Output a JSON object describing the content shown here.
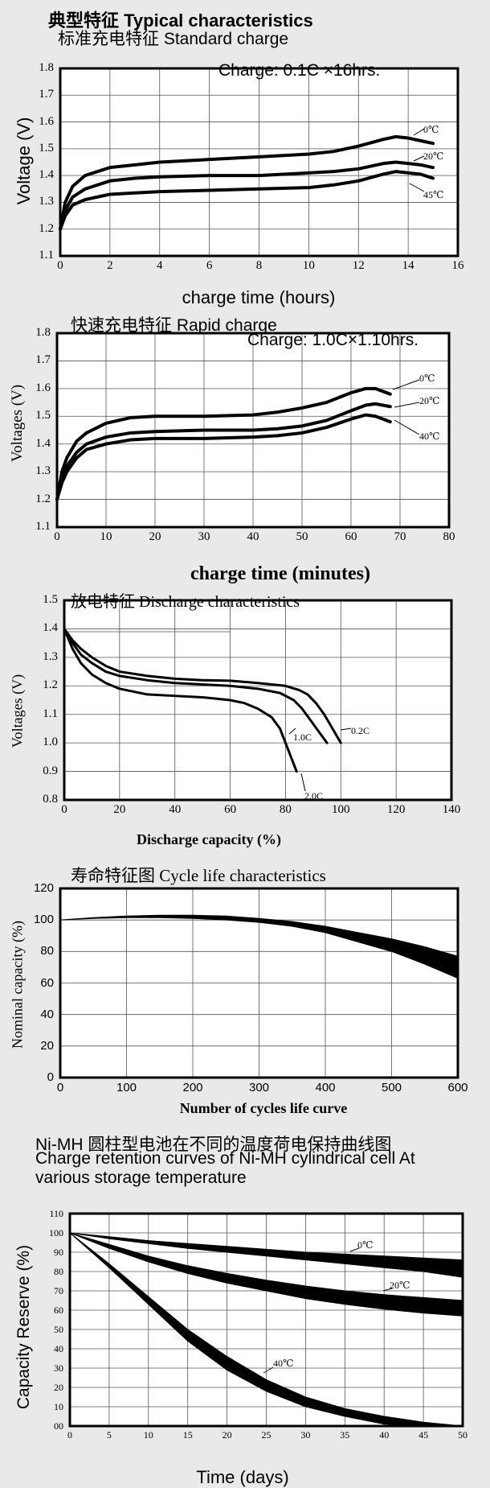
{
  "page_title": "典型特征 Typical characteristics",
  "colors": {
    "panel_bg": "#e9e9e9",
    "white": "#ffffff",
    "ink": "#000000",
    "grid": "#555555"
  },
  "chart_data": [
    {
      "id": "standard",
      "type": "line",
      "title": "标准充电特征 Standard charge",
      "annotation": "Charge: 0.1C ×16hrs.",
      "xlabel": "charge time (hours)",
      "ylabel": "Voltage (V)",
      "xlim": [
        0,
        16
      ],
      "ylim": [
        1.1,
        1.8
      ],
      "xticks": [
        "0",
        "2",
        "4",
        "6",
        "8",
        "10",
        "12",
        "14",
        "16"
      ],
      "yticks": [
        "1.1",
        "1.2",
        "1.3",
        "1.4",
        "1.5",
        "1.6",
        "1.7",
        "1.8"
      ],
      "grid": true,
      "series": [
        {
          "name": "0℃",
          "x": [
            0,
            0.2,
            0.5,
            1,
            2,
            3,
            4,
            6,
            8,
            10,
            11,
            12,
            13,
            13.5,
            14,
            14.5,
            15
          ],
          "y": [
            1.2,
            1.3,
            1.36,
            1.4,
            1.43,
            1.44,
            1.45,
            1.46,
            1.47,
            1.48,
            1.49,
            1.51,
            1.535,
            1.545,
            1.54,
            1.53,
            1.52
          ],
          "band": 0.005
        },
        {
          "name": "20℃",
          "x": [
            0,
            0.2,
            0.5,
            1,
            2,
            3,
            4,
            6,
            8,
            10,
            11,
            12,
            13,
            13.5,
            14,
            14.5,
            15
          ],
          "y": [
            1.2,
            1.27,
            1.32,
            1.35,
            1.38,
            1.39,
            1.395,
            1.4,
            1.4,
            1.41,
            1.415,
            1.425,
            1.445,
            1.45,
            1.445,
            1.44,
            1.43
          ],
          "band": 0.004
        },
        {
          "name": "45℃",
          "x": [
            0,
            0.2,
            0.5,
            1,
            2,
            3,
            4,
            6,
            8,
            10,
            11,
            12,
            13,
            13.5,
            14,
            14.5,
            15
          ],
          "y": [
            1.2,
            1.25,
            1.29,
            1.31,
            1.33,
            1.335,
            1.34,
            1.345,
            1.35,
            1.355,
            1.365,
            1.38,
            1.405,
            1.415,
            1.41,
            1.405,
            1.39
          ],
          "band": 0.004
        }
      ]
    },
    {
      "id": "rapid",
      "type": "line",
      "title": "快速充电特征 Rapid charge",
      "annotation": "Charge: 1.0C×1.10hrs.",
      "xlabel": "charge time (minutes)",
      "ylabel": "Voltages (V)",
      "xlim": [
        0,
        80
      ],
      "ylim": [
        1.1,
        1.8
      ],
      "xticks": [
        "0",
        "10",
        "20",
        "30",
        "40",
        "50",
        "60",
        "70",
        "80"
      ],
      "yticks": [
        "1.1",
        "1.2",
        "1.3",
        "1.4",
        "1.5",
        "1.6",
        "1.7",
        "1.8"
      ],
      "grid": true,
      "series": [
        {
          "name": "0℃",
          "x": [
            0,
            1,
            2,
            4,
            6,
            10,
            15,
            20,
            30,
            40,
            45,
            50,
            55,
            60,
            63,
            65,
            68
          ],
          "y": [
            1.2,
            1.3,
            1.35,
            1.41,
            1.44,
            1.475,
            1.495,
            1.5,
            1.5,
            1.505,
            1.515,
            1.53,
            1.55,
            1.585,
            1.6,
            1.6,
            1.58
          ],
          "band": 0.006
        },
        {
          "name": "20℃",
          "x": [
            0,
            1,
            2,
            4,
            6,
            10,
            15,
            20,
            30,
            40,
            45,
            50,
            55,
            60,
            63,
            65,
            68
          ],
          "y": [
            1.2,
            1.28,
            1.32,
            1.37,
            1.4,
            1.425,
            1.44,
            1.445,
            1.45,
            1.45,
            1.455,
            1.465,
            1.485,
            1.52,
            1.54,
            1.545,
            1.535
          ],
          "band": 0.006
        },
        {
          "name": "40℃",
          "x": [
            0,
            1,
            2,
            4,
            6,
            10,
            15,
            20,
            30,
            40,
            45,
            50,
            55,
            60,
            63,
            65,
            68
          ],
          "y": [
            1.2,
            1.26,
            1.3,
            1.35,
            1.38,
            1.4,
            1.415,
            1.42,
            1.42,
            1.425,
            1.43,
            1.44,
            1.46,
            1.49,
            1.505,
            1.5,
            1.48
          ],
          "band": 0.006
        }
      ]
    },
    {
      "id": "discharge",
      "type": "line",
      "title": "放电特征 Discharge characteristics",
      "xlabel": "Discharge capacity (%)",
      "ylabel": "Voltages (V)",
      "xlim": [
        0,
        140
      ],
      "ylim": [
        0.8,
        1.5
      ],
      "xticks": [
        "0",
        "20",
        "40",
        "60",
        "80",
        "100",
        "120",
        "140"
      ],
      "yticks": [
        "0.8",
        "0.9",
        "1.0",
        "1.1",
        "1.2",
        "1.3",
        "1.4",
        "1.5"
      ],
      "grid": true,
      "series": [
        {
          "name": "0.2C",
          "x": [
            0,
            3,
            6,
            10,
            15,
            20,
            30,
            40,
            50,
            60,
            70,
            80,
            85,
            88,
            91,
            94,
            97,
            100
          ],
          "y": [
            1.4,
            1.36,
            1.33,
            1.3,
            1.27,
            1.25,
            1.235,
            1.225,
            1.22,
            1.218,
            1.21,
            1.2,
            1.185,
            1.17,
            1.14,
            1.1,
            1.05,
            1.0
          ],
          "band": 0.004
        },
        {
          "name": "1.0C",
          "x": [
            0,
            3,
            6,
            10,
            15,
            20,
            30,
            40,
            50,
            60,
            70,
            78,
            83,
            86,
            89,
            92,
            95
          ],
          "y": [
            1.4,
            1.35,
            1.31,
            1.28,
            1.25,
            1.235,
            1.22,
            1.21,
            1.205,
            1.2,
            1.19,
            1.175,
            1.15,
            1.12,
            1.08,
            1.04,
            1.0
          ],
          "band": 0.004
        },
        {
          "name": "2.0C",
          "x": [
            0,
            3,
            6,
            10,
            15,
            20,
            30,
            40,
            50,
            60,
            65,
            70,
            75,
            78,
            80,
            82,
            84
          ],
          "y": [
            1.4,
            1.33,
            1.28,
            1.24,
            1.21,
            1.19,
            1.17,
            1.165,
            1.16,
            1.15,
            1.14,
            1.12,
            1.09,
            1.05,
            1.0,
            0.95,
            0.9
          ],
          "band": 0.004
        }
      ]
    },
    {
      "id": "cycle",
      "type": "area",
      "title": "寿命特征图 Cycle life characteristics",
      "xlabel": "Number of cycles life curve",
      "ylabel": "Nominal capacity (%)",
      "xlim": [
        0,
        600
      ],
      "ylim": [
        0,
        120
      ],
      "xticks": [
        "0",
        "100",
        "200",
        "300",
        "400",
        "500",
        "600"
      ],
      "yticks": [
        "0",
        "20",
        "40",
        "60",
        "80",
        "100",
        "120"
      ],
      "grid": true,
      "series": [
        {
          "name": "",
          "x": [
            0,
            50,
            100,
            150,
            200,
            250,
            300,
            350,
            400,
            450,
            500,
            550,
            600
          ],
          "upper": [
            100,
            101.5,
            102.5,
            103,
            103,
            102.5,
            101,
            99,
            96,
            92,
            88,
            83,
            77
          ],
          "lower": [
            100,
            101,
            101.5,
            101.5,
            101,
            100,
            98.5,
            96,
            92,
            86,
            80,
            72,
            63
          ]
        }
      ]
    },
    {
      "id": "retention",
      "type": "area",
      "title_cn": "Ni-MH 圆柱型电池在不同的温度荷电保持曲线图",
      "title": "Charge retention curves of Ni-MH cylindrical cell At various storage temperature",
      "title_lines": [
        "Charge retention curves of Ni-MH cylindrical cell At",
        "various storage temperature"
      ],
      "xlabel": "Time (days)",
      "ylabel": "Capacity Reserve (%)",
      "xlim": [
        0,
        50
      ],
      "ylim": [
        0,
        110
      ],
      "xticks": [
        "0",
        "5",
        "10",
        "15",
        "20",
        "25",
        "30",
        "35",
        "40",
        "45",
        "50"
      ],
      "yticks": [
        "00",
        "10",
        "20",
        "30",
        "40",
        "50",
        "60",
        "70",
        "80",
        "90",
        "100",
        "110"
      ],
      "grid": true,
      "series": [
        {
          "name": "0℃",
          "x": [
            0,
            5,
            10,
            15,
            20,
            25,
            30,
            35,
            40,
            45,
            50
          ],
          "upper": [
            100,
            98,
            96,
            94.5,
            93,
            91.5,
            90,
            89,
            88,
            87,
            86
          ],
          "lower": [
            100,
            97,
            94.5,
            92,
            90,
            88,
            86,
            84,
            82,
            80,
            77
          ]
        },
        {
          "name": "20℃",
          "x": [
            0,
            5,
            10,
            15,
            20,
            25,
            30,
            35,
            40,
            45,
            50
          ],
          "upper": [
            100,
            94,
            88,
            83,
            79,
            75.5,
            72.5,
            70,
            68,
            66.5,
            65
          ],
          "lower": [
            100,
            92,
            85,
            79,
            74,
            70,
            66,
            63,
            60.5,
            58.5,
            57
          ]
        },
        {
          "name": "40℃",
          "x": [
            0,
            5,
            10,
            15,
            20,
            25,
            30,
            35,
            40,
            45,
            50
          ],
          "upper": [
            100,
            84,
            67,
            50,
            36,
            24,
            15,
            9,
            5,
            2,
            0
          ],
          "lower": [
            100,
            82,
            63,
            44,
            29,
            18,
            10,
            5,
            1,
            0,
            0
          ]
        }
      ]
    }
  ]
}
